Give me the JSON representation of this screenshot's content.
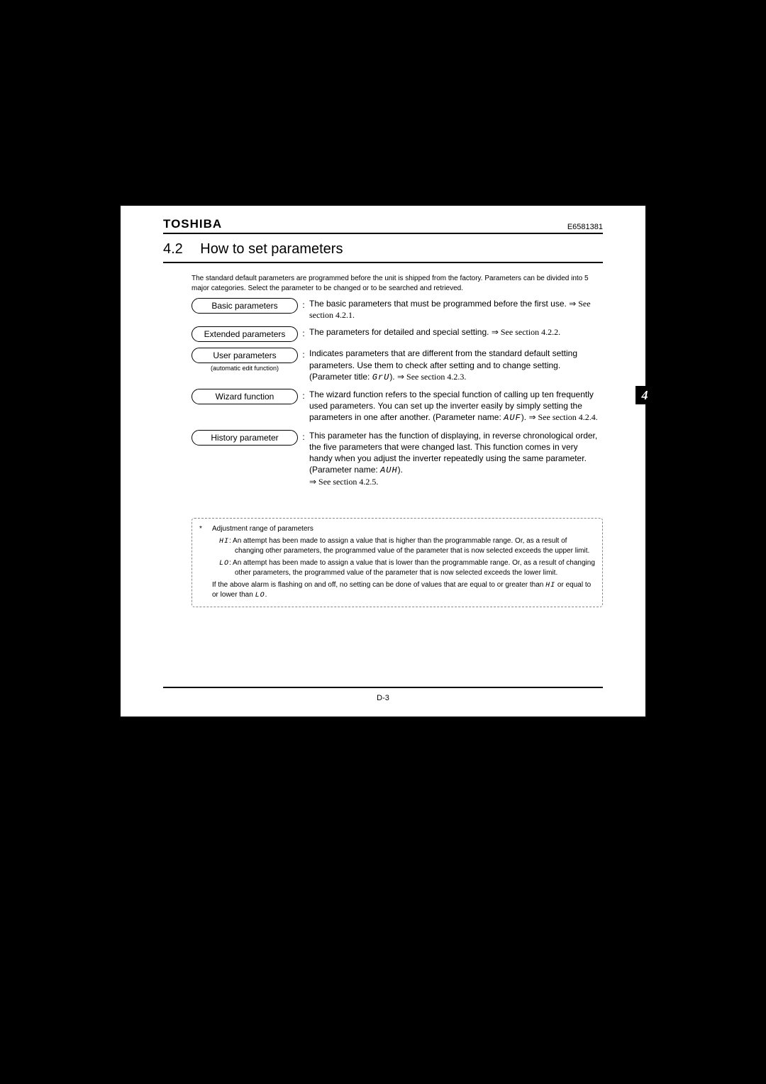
{
  "header": {
    "brand": "TOSHIBA",
    "doc_id": "E6581381"
  },
  "section": {
    "number": "4.2",
    "title": "How to set parameters"
  },
  "intro": "The standard default parameters are programmed before the unit is shipped from the factory. Parameters can be divided into 5 major categories. Select the parameter to be changed or to be searched and retrieved.",
  "rows": [
    {
      "label": "Basic parameters",
      "subnote": "",
      "desc_pre": "The basic parameters that must be programmed before the first use.  ",
      "ref": "⇒ See section 4.2.1.",
      "desc_post": ""
    },
    {
      "label": "Extended parameters",
      "subnote": "",
      "desc_pre": "The parameters for detailed and special setting. ",
      "ref": "⇒ See section 4.2.2.",
      "desc_post": ""
    },
    {
      "label": "User parameters",
      "subnote": "(automatic edit function)",
      "desc_pre": "Indicates parameters that are different from the standard default setting parameters. Use them to check after setting and to change setting. (Parameter title: ",
      "code": "GrU",
      "desc_mid": ").  ",
      "ref": "⇒ See section 4.2.3.",
      "desc_post": ""
    },
    {
      "label": "Wizard function",
      "subnote": "",
      "desc_pre": "The wizard function refers to the special function of calling up ten frequently used parameters. You can set up the inverter easily by simply setting the parameters in one after another. (Parameter name: ",
      "code": "AUF",
      "desc_mid": ").  ",
      "ref": "⇒ See section 4.2.4.",
      "desc_post": ""
    },
    {
      "label": "History parameter",
      "subnote": "",
      "desc_pre": "This parameter has the function of displaying, in reverse chronological order, the five parameters that were changed last. This function comes in very handy when you adjust the inverter repeatedly using the same parameter. (Parameter name: ",
      "code": "AUH",
      "desc_mid": "). ",
      "ref": "⇒ See section 4.2.5.",
      "desc_post": ""
    }
  ],
  "note": {
    "head": "Adjustment range of parameters",
    "hi_code": "HI",
    "hi_text": ": An attempt has been made to assign a value that is higher than the programmable range. Or, as a result of changing other parameters, the programmed value of the parameter that is now selected exceeds the upper limit.",
    "lo_code": "LO",
    "lo_text": ": An attempt has been made to assign a value that is lower than the programmable range. Or, as a result of changing other parameters, the programmed value of the parameter that is now selected exceeds the lower limit.",
    "wrap_pre": "If the above alarm is flashing on and off, no setting can be done of values that are equal to or greater than ",
    "wrap_c1": "HI",
    "wrap_mid": " or equal to or lower than ",
    "wrap_c2": "LO",
    "wrap_post": "."
  },
  "page_number": "D-3",
  "side_tab": "4"
}
